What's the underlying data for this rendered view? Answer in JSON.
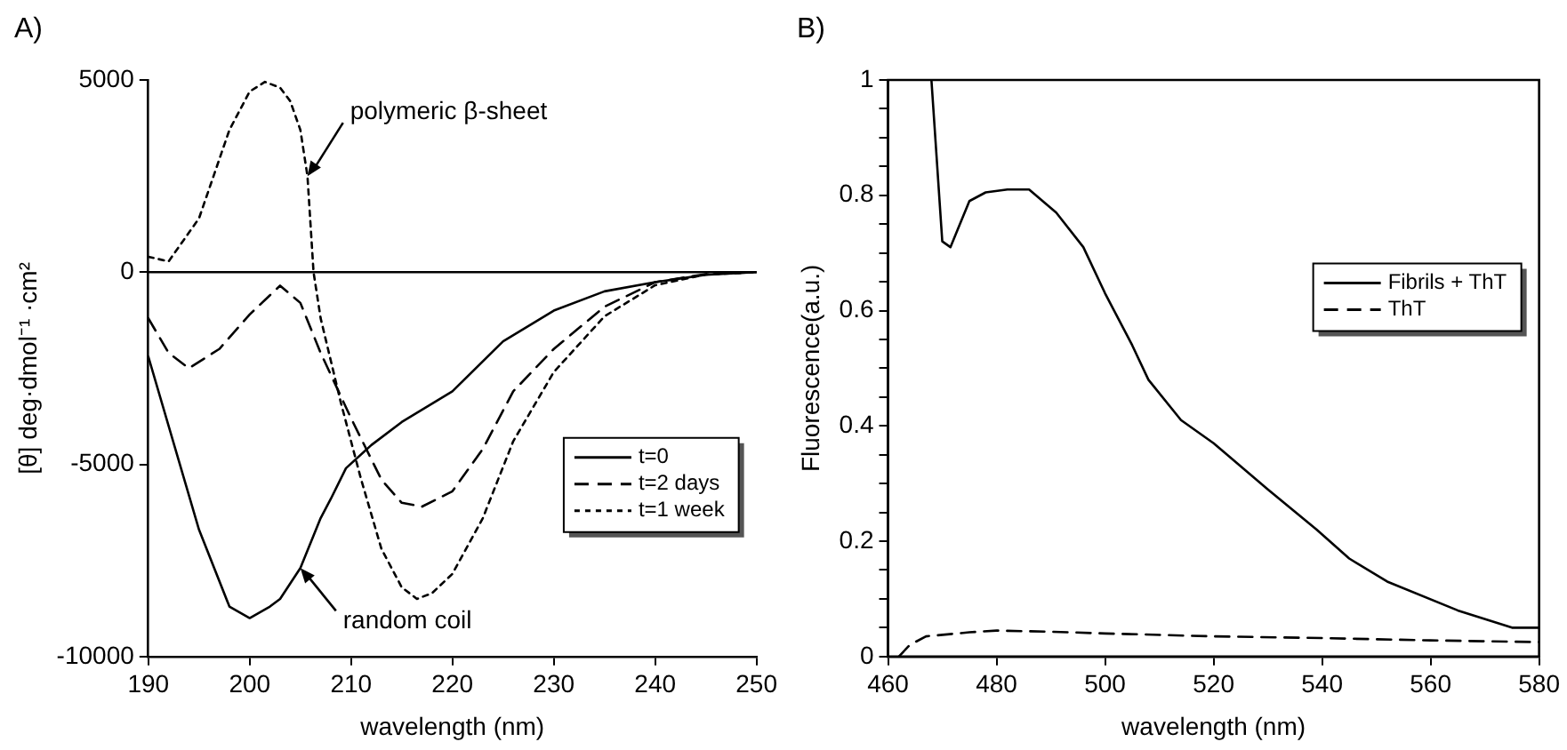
{
  "chart_data": [
    {
      "type": "line",
      "title": "A)",
      "xlabel": "wavelength (nm)",
      "ylabel": "[θ] deg·dmol⁻¹ ·cm²",
      "xlim": [
        190,
        250
      ],
      "xticks": [
        190,
        200,
        210,
        220,
        230,
        240,
        250
      ],
      "ylim": [
        -10000,
        5000
      ],
      "yticks": [
        -10000,
        -5000,
        0,
        5000
      ],
      "grid": false,
      "legend": "bottom right",
      "marker": "none",
      "ref_lines": [
        {
          "axis": "y",
          "value": 0,
          "color": "#000000",
          "line_style": "solid"
        }
      ],
      "annotations": [
        {
          "text": "polymeric β-sheet",
          "x": 205.7,
          "y": 2500
        },
        {
          "text": "random coil",
          "x": 205,
          "y": -7700
        }
      ],
      "series": [
        {
          "name": "t=0",
          "color": "#000000",
          "line_style": "solid",
          "x": [
            190,
            195,
            198,
            200,
            202,
            203,
            205,
            207,
            208,
            209.5,
            212,
            215,
            220,
            225,
            230,
            235,
            240,
            245,
            250
          ],
          "values": [
            -2200,
            -6700,
            -8700,
            -9000,
            -8700,
            -8500,
            -7700,
            -6400,
            -5900,
            -5100,
            -4500,
            -3900,
            -3100,
            -1800,
            -1000,
            -500,
            -260,
            -70,
            0
          ]
        },
        {
          "name": "t=2 days",
          "color": "#000000",
          "line_style": "dashed",
          "x": [
            190,
            192,
            194,
            197,
            200,
            202,
            203,
            205,
            207,
            210,
            213,
            215,
            217,
            220,
            223,
            226,
            230,
            235,
            240,
            245,
            250
          ],
          "values": [
            -1200,
            -2100,
            -2500,
            -2000,
            -1100,
            -600,
            -350,
            -800,
            -2100,
            -3800,
            -5400,
            -6000,
            -6100,
            -5700,
            -4600,
            -3100,
            -2000,
            -900,
            -260,
            -50,
            0
          ]
        },
        {
          "name": "t=1 week",
          "color": "#000000",
          "line_style": "dotted",
          "x": [
            190,
            192,
            195,
            198,
            200,
            201.5,
            203,
            204,
            205,
            205.7,
            206.3,
            207,
            209,
            211,
            213,
            215,
            216.5,
            218,
            220,
            223,
            226,
            230,
            235,
            240,
            245,
            250
          ],
          "values": [
            400,
            280,
            1400,
            3700,
            4700,
            4950,
            4800,
            4450,
            3700,
            2500,
            0,
            -1200,
            -3400,
            -5400,
            -7200,
            -8200,
            -8500,
            -8350,
            -7850,
            -6400,
            -4400,
            -2600,
            -1150,
            -340,
            -60,
            0
          ]
        }
      ]
    },
    {
      "type": "line",
      "title": "B)",
      "xlabel": "wavelength (nm)",
      "ylabel": "Fluorescence(a.u.)",
      "xlim": [
        460,
        580
      ],
      "xticks": [
        460,
        480,
        500,
        520,
        540,
        560,
        580
      ],
      "ylim": [
        0,
        1
      ],
      "yticks": [
        0,
        {
          "value": 0.05,
          "label": null
        },
        {
          "value": 0.1,
          "label": null
        },
        {
          "value": 0.15,
          "label": null
        },
        0.2,
        {
          "value": 0.25,
          "label": null
        },
        {
          "value": 0.3,
          "label": null
        },
        {
          "value": 0.35,
          "label": null
        },
        0.4,
        {
          "value": 0.45,
          "label": null
        },
        {
          "value": 0.5,
          "label": null
        },
        {
          "value": 0.55,
          "label": null
        },
        0.6,
        {
          "value": 0.65,
          "label": null
        },
        {
          "value": 0.7,
          "label": null
        },
        {
          "value": 0.75,
          "label": null
        },
        0.8,
        {
          "value": 0.85,
          "label": null
        },
        {
          "value": 0.9,
          "label": null
        },
        {
          "value": 0.95,
          "label": null
        },
        1
      ],
      "grid": false,
      "legend": "right",
      "marker": "none",
      "series": [
        {
          "name": "Fibrils + ThT",
          "color": "#000000",
          "line_style": "solid",
          "x": [
            468,
            470,
            471.5,
            475,
            478,
            482,
            486,
            491,
            496,
            500,
            505,
            508,
            514,
            520,
            530,
            539,
            545,
            552,
            565,
            575,
            580
          ],
          "values": [
            1,
            0.72,
            0.71,
            0.79,
            0.805,
            0.81,
            0.81,
            0.77,
            0.71,
            0.63,
            0.54,
            0.48,
            0.41,
            0.37,
            0.29,
            0.22,
            0.17,
            0.13,
            0.08,
            0.05,
            0.05
          ]
        },
        {
          "name": "ThT",
          "color": "#000000",
          "line_style": "dashed",
          "x": [
            462,
            464,
            467,
            475,
            480,
            490,
            500,
            520,
            540,
            560,
            580
          ],
          "values": [
            0,
            0.02,
            0.035,
            0.042,
            0.045,
            0.043,
            0.04,
            0.035,
            0.032,
            0.028,
            0.025
          ]
        }
      ]
    }
  ]
}
